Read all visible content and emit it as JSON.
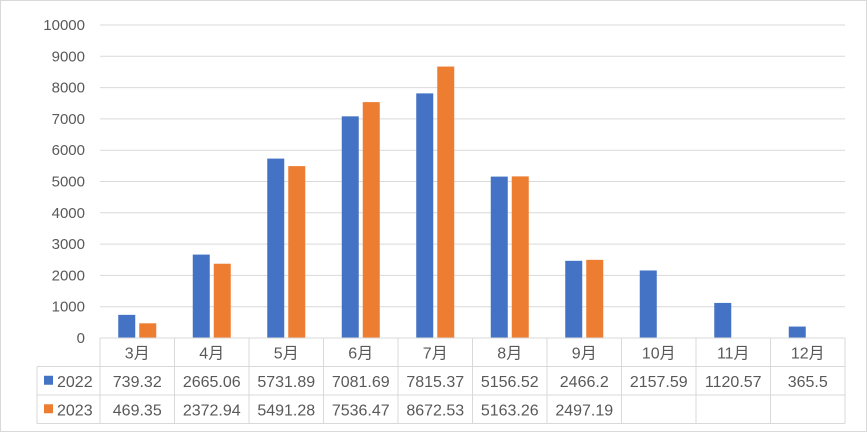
{
  "chart_data": {
    "type": "bar",
    "categories": [
      "3月",
      "4月",
      "5月",
      "6月",
      "7月",
      "8月",
      "9月",
      "10月",
      "11月",
      "12月"
    ],
    "series": [
      {
        "name": "2022",
        "color": "#4472c4",
        "values": [
          739.32,
          2665.06,
          5731.89,
          7081.69,
          7815.37,
          5156.52,
          2466.2,
          2157.59,
          1120.57,
          365.5
        ],
        "labels": [
          "739.32",
          "2665.06",
          "5731.89",
          "7081.69",
          "7815.37",
          "5156.52",
          "2466.2",
          "2157.59",
          "1120.57",
          "365.5"
        ]
      },
      {
        "name": "2023",
        "color": "#ed7d31",
        "values": [
          469.35,
          2372.94,
          5491.28,
          7536.47,
          8672.53,
          5163.26,
          2497.19,
          null,
          null,
          null
        ],
        "labels": [
          "469.35",
          "2372.94",
          "5491.28",
          "7536.47",
          "8672.53",
          "5163.26",
          "2497.19",
          "",
          "",
          ""
        ]
      }
    ],
    "yticks": [
      "0",
      "1000",
      "2000",
      "3000",
      "4000",
      "5000",
      "6000",
      "7000",
      "8000",
      "9000",
      "10000"
    ],
    "ylim": [
      0,
      10000
    ],
    "grid": true,
    "data_table": true
  }
}
